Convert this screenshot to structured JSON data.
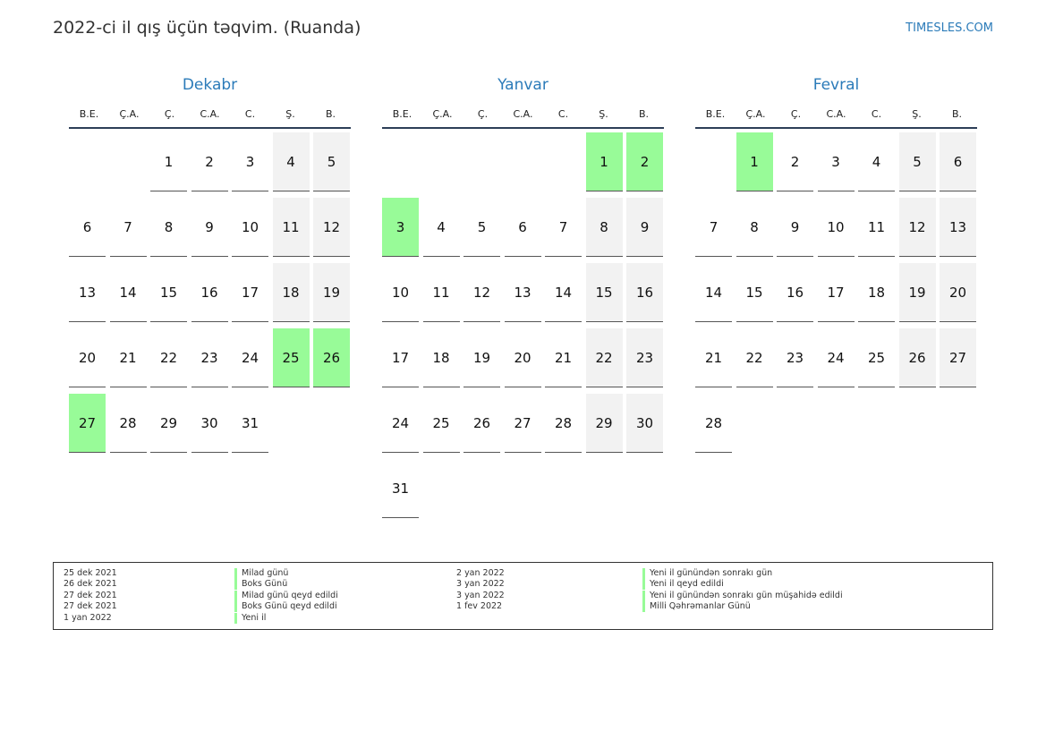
{
  "title": "2022-ci il qış üçün təqvim. (Ruanda)",
  "brand": "TIMESLES.COM",
  "colors": {
    "accent": "#2b7bb9",
    "holiday": "#98fb98",
    "weekend": "#f2f2f2"
  },
  "weekdays": [
    "B.E.",
    "Ç.A.",
    "Ç.",
    "C.A.",
    "C.",
    "Ş.",
    "B."
  ],
  "months": [
    {
      "name": "Dekabr",
      "start_weekday": 2,
      "days": 31,
      "holidays": [
        25,
        26,
        27
      ]
    },
    {
      "name": "Yanvar",
      "start_weekday": 5,
      "days": 31,
      "holidays": [
        1,
        2,
        3
      ]
    },
    {
      "name": "Fevral",
      "start_weekday": 1,
      "days": 28,
      "holidays": [
        1
      ]
    }
  ],
  "legend": [
    {
      "date": "25 dek 2021",
      "name": "Milad günü"
    },
    {
      "date": "26 dek 2021",
      "name": "Boks Günü"
    },
    {
      "date": "27 dek 2021",
      "name": "Milad günü qeyd edildi"
    },
    {
      "date": "27 dek 2021",
      "name": "Boks Günü qeyd edildi"
    },
    {
      "date": "1 yan 2022",
      "name": "Yeni il"
    },
    {
      "date": "2 yan 2022",
      "name": "Yeni il günündən sonrakı gün"
    },
    {
      "date": "3 yan 2022",
      "name": "Yeni il qeyd edildi"
    },
    {
      "date": "3 yan 2022",
      "name": "Yeni il günündən sonrakı gün müşahidə edildi"
    },
    {
      "date": "1 fev 2022",
      "name": "Milli Qəhrəmanlar Günü"
    }
  ]
}
